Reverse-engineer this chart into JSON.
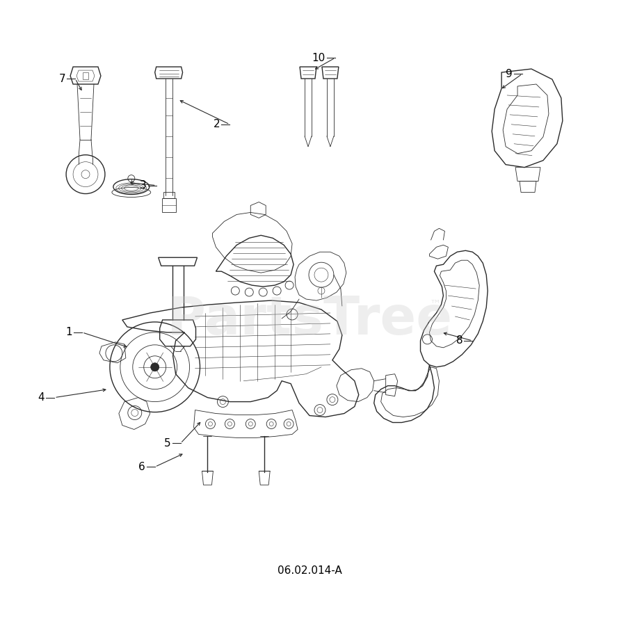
{
  "diagram_code": "06.02.014-A",
  "background_color": "#ffffff",
  "line_color": "#2a2a2a",
  "label_color": "#000000",
  "watermark_color": "#c8c8c8",
  "watermark_text": "PartsTree",
  "watermark_tm": "™",
  "figsize": [
    8.9,
    8.9
  ],
  "dpi": 100,
  "label_positions": {
    "1": [
      0.118,
      0.478,
      0.19,
      0.497
    ],
    "2": [
      0.358,
      0.822,
      0.295,
      0.795
    ],
    "3": [
      0.24,
      0.718,
      0.212,
      0.703
    ],
    "4": [
      0.075,
      0.378,
      0.158,
      0.395
    ],
    "5": [
      0.278,
      0.198,
      0.268,
      0.228
    ],
    "6": [
      0.238,
      0.152,
      0.278,
      0.182
    ],
    "7": [
      0.108,
      0.858,
      0.13,
      0.838
    ],
    "8": [
      0.752,
      0.468,
      0.718,
      0.502
    ],
    "9": [
      0.832,
      0.858,
      0.782,
      0.828
    ],
    "10": [
      0.528,
      0.872,
      0.498,
      0.838
    ]
  }
}
